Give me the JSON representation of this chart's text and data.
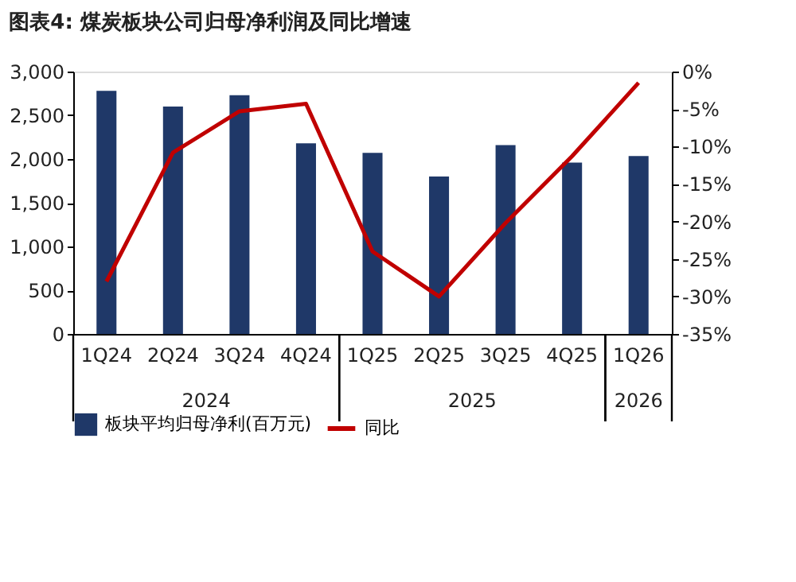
{
  "chart_data": {
    "type": "bar",
    "title": "图表4:   煤炭板块公司归母净利润及同比增速",
    "categories": [
      "1Q24",
      "2Q24",
      "3Q24",
      "4Q24",
      "1Q25",
      "2Q25",
      "3Q25",
      "4Q25",
      "1Q26"
    ],
    "series": [
      {
        "name": "板块平均归母净利(百万元)",
        "color": "#1f3868",
        "values": [
          2780,
          2600,
          2730,
          2180,
          2070,
          1800,
          2160,
          1960,
          2035
        ]
      },
      {
        "name": "同比",
        "type": "line",
        "axis": "y2",
        "color": "#c00000",
        "values": [
          -28,
          -10.8,
          -5.3,
          -4.3,
          -24,
          -30,
          -20.2,
          -11.3,
          -1.5
        ]
      }
    ],
    "annotations": [
      "2024",
      "2025",
      "2026"
    ],
    "ylim": [
      0,
      3000
    ],
    "yticks": [
      0,
      {
        "value": 500,
        "label": "500"
      },
      {
        "value": 1000,
        "label": "1,000"
      },
      {
        "value": 1500,
        "label": "1,500"
      },
      {
        "value": 2000,
        "label": "2,000"
      },
      {
        "value": 2500,
        "label": "2,500"
      },
      {
        "value": 3000,
        "label": "3,000"
      }
    ],
    "y2lim": [
      -35,
      0
    ],
    "y2ticks": [
      {
        "value": -35,
        "label": "-35%"
      },
      {
        "value": -30,
        "label": "-30%"
      },
      {
        "value": -25,
        "label": "-25%"
      },
      {
        "value": -20,
        "label": "-20%"
      },
      {
        "value": -15,
        "label": "-15%"
      },
      {
        "value": -10,
        "label": "-10%"
      },
      {
        "value": -5,
        "label": "-5%"
      },
      {
        "value": 0,
        "label": "0%"
      }
    ],
    "grid": false,
    "legend": "bottom",
    "marker": "none"
  }
}
